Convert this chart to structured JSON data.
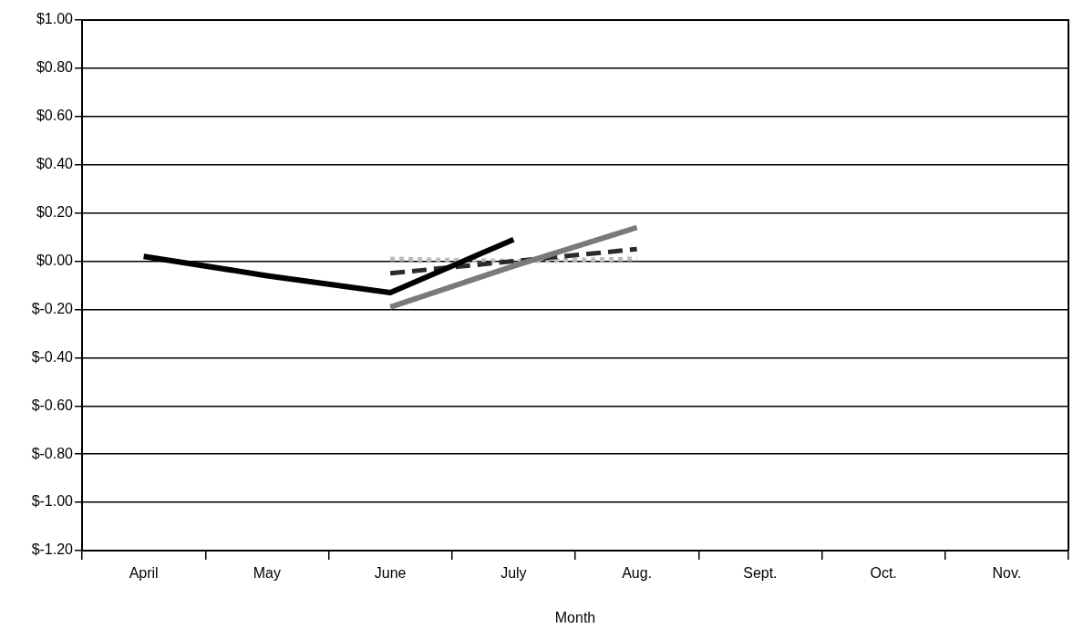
{
  "chart_data": {
    "type": "line",
    "xlabel": "Month",
    "categories": [
      "April",
      "May",
      "June",
      "July",
      "Aug.",
      "Sept.",
      "Oct.",
      "Nov."
    ],
    "series": [
      {
        "color": "#000000",
        "line_style": "solid",
        "values": [
          0.02,
          -0.06,
          -0.13,
          0.09,
          null,
          null,
          null,
          null
        ]
      },
      {
        "color": "#7a7a7a",
        "line_style": "solid",
        "values": [
          null,
          null,
          -0.19,
          -0.02,
          0.14,
          null,
          null,
          null
        ]
      },
      {
        "color": "#2a2a2a",
        "line_style": "dashed",
        "values": [
          null,
          null,
          -0.05,
          0.0,
          0.05,
          null,
          null,
          null
        ]
      },
      {
        "color": "#bdbdbd",
        "line_style": "dotted",
        "values": [
          null,
          null,
          0.01,
          0.0,
          0.01,
          null,
          null,
          null
        ]
      }
    ],
    "ylim": [
      -1.2,
      1.0
    ],
    "yticks": [
      {
        "value": 1.0,
        "label": "$1.00"
      },
      {
        "value": 0.8,
        "label": "$0.80"
      },
      {
        "value": 0.6,
        "label": "$0.60"
      },
      {
        "value": 0.4,
        "label": "$0.40"
      },
      {
        "value": 0.2,
        "label": "$0.20"
      },
      {
        "value": 0.0,
        "label": "$0.00"
      },
      {
        "value": -0.2,
        "label": "$-0.20"
      },
      {
        "value": -0.4,
        "label": "$-0.40"
      },
      {
        "value": -0.6,
        "label": "$-0.60"
      },
      {
        "value": -0.8,
        "label": "$-0.80"
      },
      {
        "value": -1.0,
        "label": "$-1.00"
      },
      {
        "value": -1.2,
        "label": "$-1.20"
      }
    ],
    "grid": "y",
    "marker": "none"
  }
}
